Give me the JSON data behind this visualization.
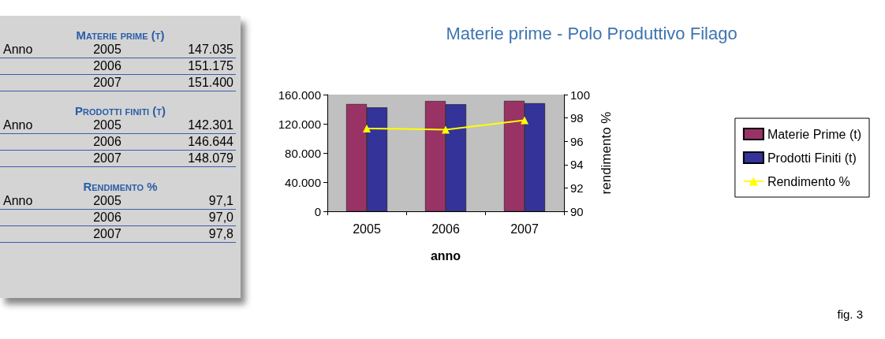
{
  "chart_data": [
    {
      "type": "other",
      "annotations": [
        "Materie prime (t)",
        "Anno",
        "2005",
        "147.035",
        "2006",
        "151.175",
        "2007",
        "151.400",
        "Prodotti finiti (t)",
        "Anno",
        "2005",
        "142.301",
        "2006",
        "146.644",
        "2007",
        "148.079",
        "Rendimento %",
        "Anno",
        "2005",
        "97,1",
        "2006",
        "97,0",
        "2007",
        "97,8"
      ]
    },
    {
      "type": "bar",
      "title": "Materie prime - Polo Produttivo Filago",
      "xlabel": "anno",
      "y2label": "rendimento %",
      "categories": [
        "2005",
        "2006",
        "2007"
      ],
      "series": [
        {
          "name": "Materie Prime (t)",
          "color": "#993366",
          "values": [
            147035,
            151175,
            151400
          ]
        },
        {
          "name": "Prodotti Finiti (t)",
          "color": "#333399",
          "values": [
            142301,
            146644,
            148079
          ]
        },
        {
          "name": "Rendimento %",
          "type": "line",
          "axis": "y2",
          "color": "#ffff00",
          "values": [
            97.1,
            97.0,
            97.8
          ]
        }
      ],
      "ylim": [
        0,
        160000
      ],
      "yticks": [
        {
          "value": 0,
          "label": "0"
        },
        {
          "value": 40000,
          "label": "40.000"
        },
        {
          "value": 80000,
          "label": "80.000"
        },
        {
          "value": 120000,
          "label": "120.000"
        },
        {
          "value": 160000,
          "label": "160.000"
        }
      ],
      "y2lim": [
        90,
        100
      ],
      "y2ticks": [
        90,
        92,
        94,
        96,
        98,
        100
      ],
      "marker": "triangle",
      "legend": "right",
      "annotations": [
        "fig. 3"
      ]
    }
  ]
}
